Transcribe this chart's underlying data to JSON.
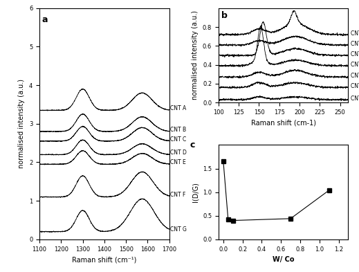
{
  "panel_a": {
    "title": "a",
    "xlabel": "Raman shift (cm⁻¹)",
    "ylabel": "normalised intensity (a.u.)",
    "xlim": [
      1100,
      1700
    ],
    "ylim": [
      0,
      6
    ],
    "yticks": [
      0,
      1,
      2,
      3,
      4,
      5,
      6
    ],
    "labels": [
      "CNT A",
      "CNT B",
      "CNT C",
      "CNT D",
      "CNT E",
      "CNT F",
      "CNT G"
    ],
    "offsets": [
      3.35,
      2.8,
      2.55,
      2.2,
      1.95,
      1.1,
      0.2
    ],
    "D_positions": [
      1300,
      1300,
      1300,
      1300,
      1300,
      1300,
      1300
    ],
    "G_positions": [
      1575,
      1575,
      1575,
      1575,
      1575,
      1575,
      1575
    ],
    "D_heights": [
      0.55,
      0.45,
      0.38,
      0.38,
      0.35,
      0.55,
      0.55
    ],
    "G_heights": [
      0.45,
      0.38,
      0.35,
      0.28,
      0.28,
      0.65,
      0.85
    ],
    "D_widths": [
      30,
      30,
      30,
      30,
      30,
      30,
      30
    ],
    "G_widths": [
      45,
      45,
      45,
      45,
      45,
      50,
      55
    ]
  },
  "panel_b": {
    "title": "b",
    "xlabel": "Raman shift (cm-1)",
    "ylabel": "normalised intensity (a.u.)",
    "xlim": [
      100,
      260
    ],
    "ylim": [
      0,
      1
    ],
    "yticks": [
      0,
      0.2,
      0.4,
      0.6,
      0.8
    ],
    "labels": [
      "CNT A",
      "CNT B",
      "CNT C",
      "CNT D",
      "CNT E",
      "CNT F",
      "CNT G"
    ],
    "offsets": [
      0.72,
      0.61,
      0.5,
      0.39,
      0.27,
      0.16,
      0.03
    ],
    "peak1_positions": [
      150,
      150,
      155,
      150,
      150,
      150,
      150
    ],
    "peak1_heights": [
      0.06,
      0.045,
      0.35,
      0.05,
      0.05,
      0.05,
      0.03
    ],
    "peak1_widths": [
      8,
      8,
      4,
      8,
      8,
      8,
      8
    ],
    "peak2_positions": [
      195,
      195,
      195,
      195,
      195,
      195,
      195
    ],
    "peak2_heights": [
      0.12,
      0.09,
      0.07,
      0.06,
      0.07,
      0.05,
      0.03
    ],
    "peak2_widths": [
      15,
      15,
      15,
      15,
      15,
      15,
      15
    ],
    "has_sharp_peak": [
      true,
      false,
      false,
      true,
      false,
      false,
      false
    ],
    "sharp_pos": [
      193,
      0,
      0,
      152,
      0,
      0,
      0
    ],
    "sharp_h": [
      0.13,
      0,
      0,
      0.37,
      0,
      0,
      0
    ]
  },
  "panel_c": {
    "title": "c",
    "xlabel": "W/ Co",
    "ylabel": "I(D/G)",
    "xlim": [
      -0.05,
      1.3
    ],
    "ylim": [
      0,
      2
    ],
    "yticks": [
      0,
      0.5,
      1.0,
      1.5
    ],
    "x_data": [
      0.0,
      0.05,
      0.1,
      0.7,
      1.1
    ],
    "y_data": [
      1.65,
      0.42,
      0.4,
      0.44,
      1.04
    ],
    "color": "#000000"
  },
  "background_color": "#ffffff",
  "text_color": "#000000",
  "line_color": "#000000"
}
